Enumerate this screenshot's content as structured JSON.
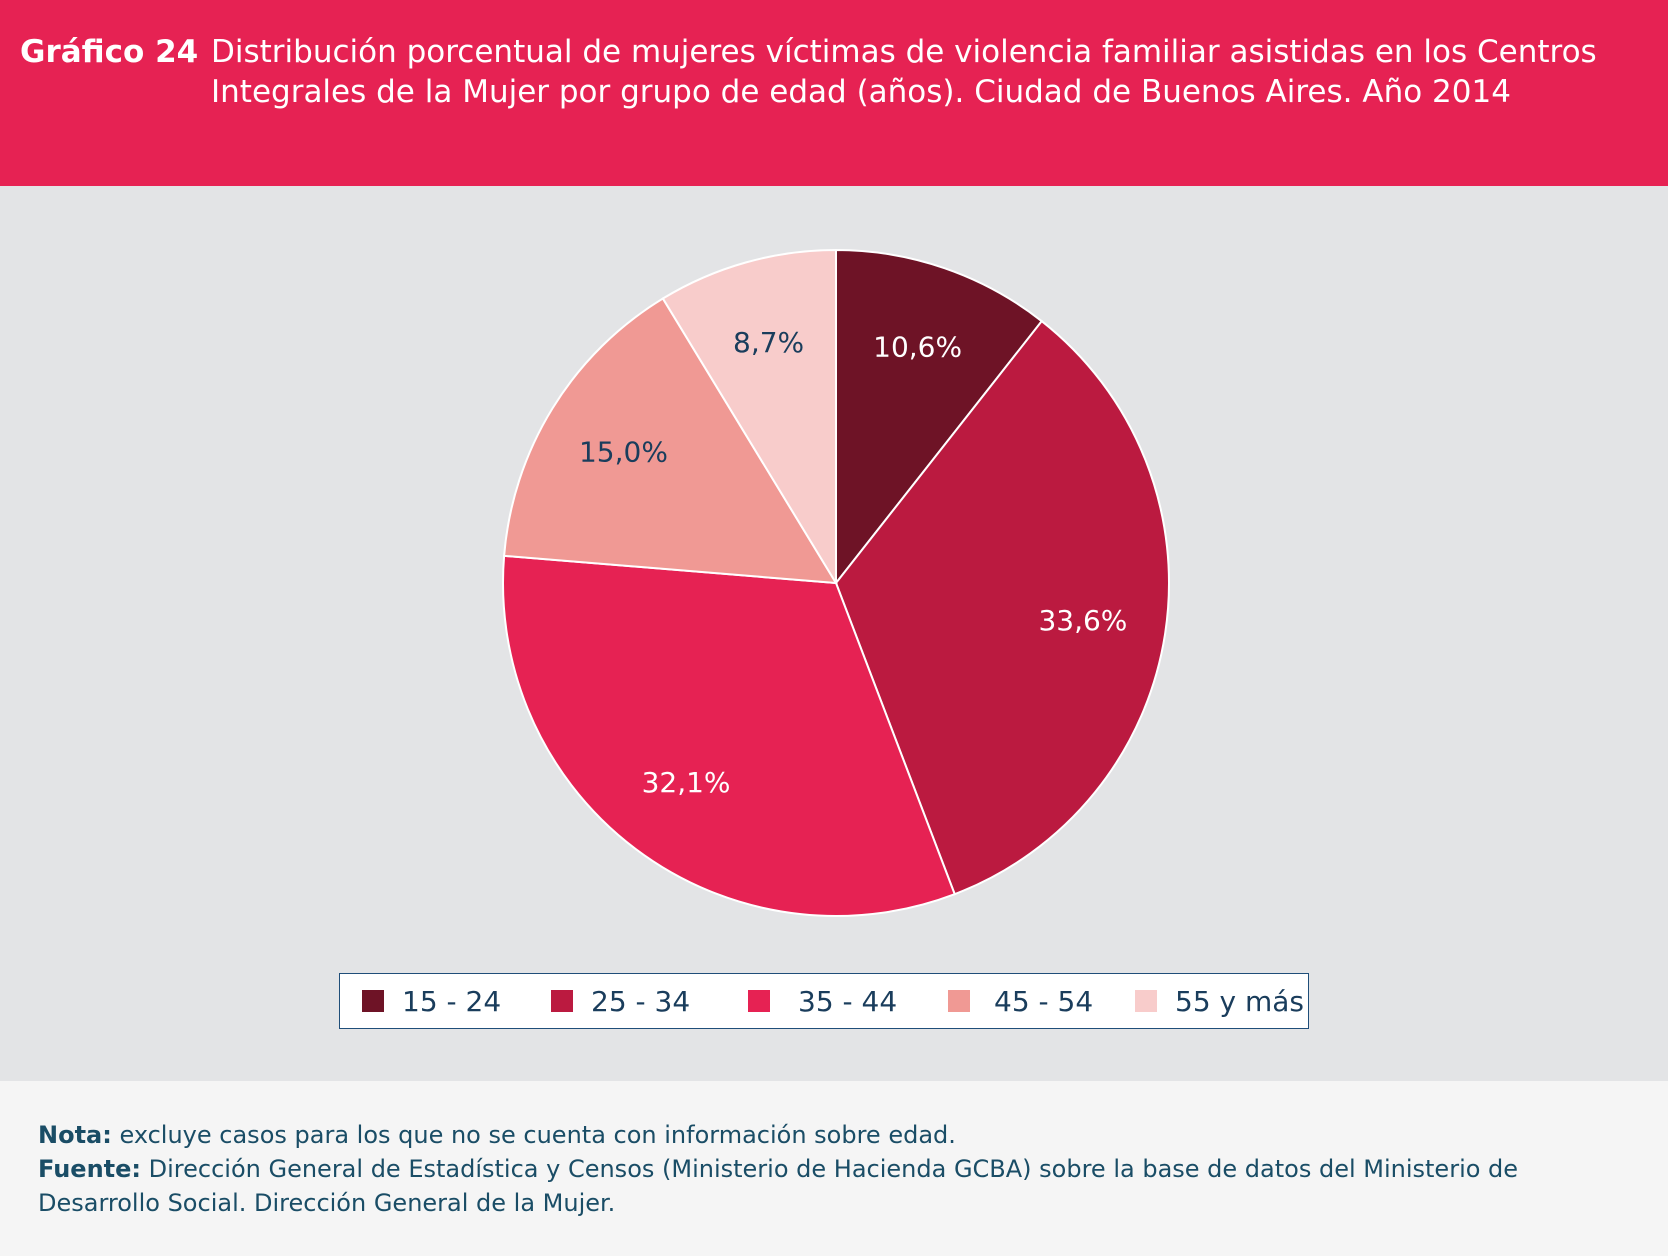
{
  "header": {
    "label": "Gráfico 24",
    "title": "Distribución porcentual de mujeres víctimas de violencia familiar asistidas en los Centros Integrales de la Mujer por grupo de edad (años). Ciudad de Buenos Aires. Año 2014"
  },
  "chart_data": {
    "type": "pie",
    "categories": [
      "15 - 24",
      "25 - 34",
      "35 - 44",
      "45 - 54",
      "55 y más"
    ],
    "values": [
      10.6,
      33.6,
      32.1,
      15.0,
      8.7
    ],
    "value_labels": [
      "10,6%",
      "33,6%",
      "32,1%",
      "15,0%",
      "8,7%"
    ],
    "colors": [
      "#6e1326",
      "#bb1a40",
      "#e62253",
      "#f09994",
      "#f8cccb"
    ],
    "label_colors": [
      "#ffffff",
      "#ffffff",
      "#ffffff",
      "#1a3d5c",
      "#1a3d5c"
    ],
    "legend_position": "bottom"
  },
  "footer": {
    "nota_label": "Nota:",
    "nota_text": "excluye casos para los que no se cuenta con información sobre edad.",
    "fuente_label": "Fuente:",
    "fuente_text": "Dirección General de Estadística y Censos (Ministerio de Hacienda GCBA) sobre la base de datos del Ministerio de Desarrollo Social. Dirección General de la Mujer."
  }
}
